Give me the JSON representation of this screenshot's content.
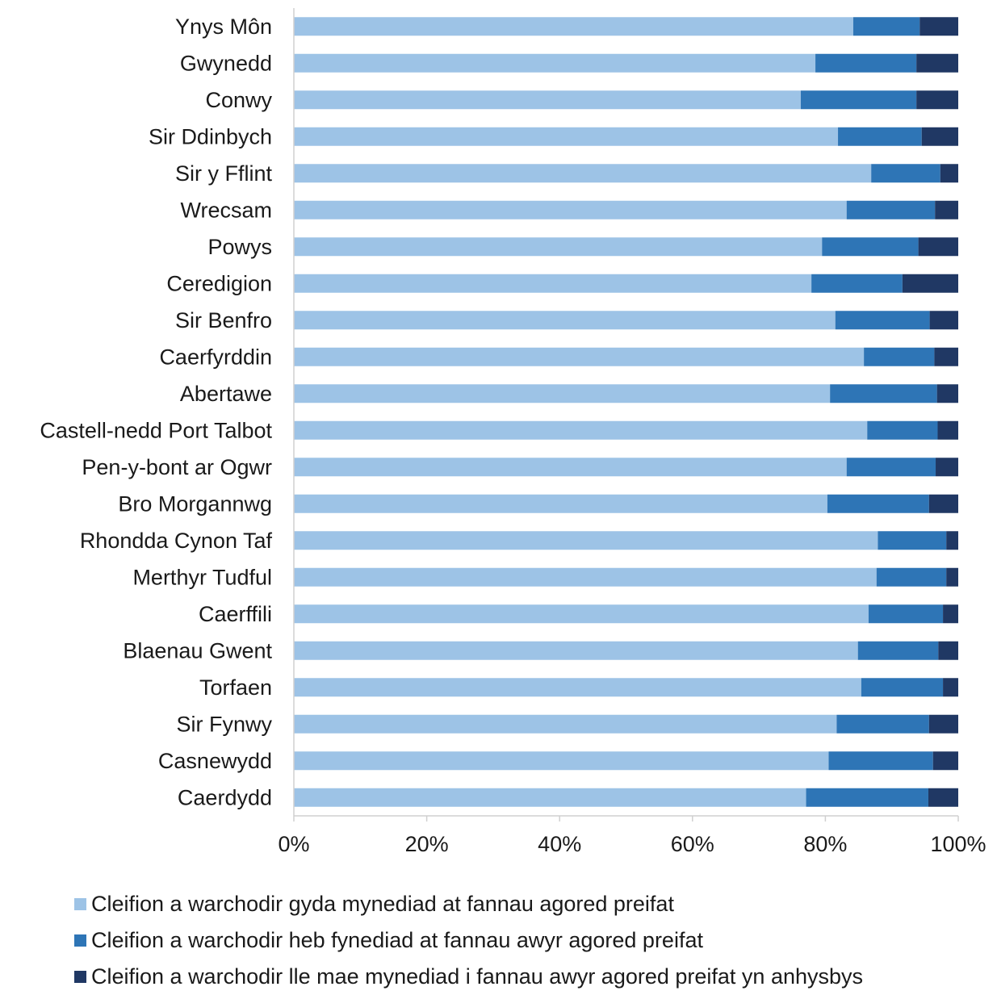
{
  "chart_data": {
    "type": "bar",
    "orientation": "horizontal",
    "stacked": "percent",
    "categories": [
      "Ynys Môn",
      "Gwynedd",
      "Conwy",
      "Sir Ddinbych",
      "Sir y Fflint",
      "Wrecsam",
      "Powys",
      "Ceredigion",
      "Sir Benfro",
      "Caerfyrddin",
      "Abertawe",
      "Castell-nedd Port Talbot",
      "Pen-y-bont ar Ogwr",
      "Bro Morgannwg",
      "Rhondda Cynon Taf",
      "Merthyr Tudful",
      "Caerffili",
      "Blaenau Gwent",
      "Torfaen",
      "Sir Fynwy",
      "Casnewydd",
      "Caerdydd"
    ],
    "series": [
      {
        "name": "Cleifion a warchodir gyda mynediad at fannau agored preifat",
        "color": "#9dc3e6",
        "values": [
          84.2,
          78.5,
          76.3,
          81.9,
          86.9,
          83.2,
          79.5,
          77.9,
          81.5,
          85.8,
          80.7,
          86.3,
          83.2,
          80.3,
          87.9,
          87.7,
          86.5,
          84.9,
          85.4,
          81.7,
          80.5,
          77.1
        ]
      },
      {
        "name": "Cleifion a warchodir heb fynediad at fannau awyr agored preifat",
        "color": "#2e75b6",
        "values": [
          10.0,
          15.2,
          17.4,
          12.6,
          10.4,
          13.3,
          14.5,
          13.7,
          14.2,
          10.6,
          16.1,
          10.6,
          13.4,
          15.3,
          10.3,
          10.5,
          11.2,
          12.1,
          12.3,
          13.9,
          15.7,
          18.4
        ]
      },
      {
        "name": "Cleifion a warchodir lle mae mynediad i fannau awyr agored preifat yn anhysbys",
        "color": "#203864",
        "values": [
          5.8,
          6.3,
          6.3,
          5.5,
          2.7,
          3.5,
          6.0,
          8.4,
          4.3,
          3.6,
          3.2,
          3.1,
          3.4,
          4.4,
          1.8,
          1.8,
          2.3,
          3.0,
          2.3,
          4.4,
          3.8,
          4.5
        ]
      }
    ],
    "xticks": [
      "0%",
      "20%",
      "40%",
      "60%",
      "80%",
      "100%"
    ],
    "xlim": [
      0,
      100
    ],
    "grid": false,
    "legend_position": "bottom"
  }
}
